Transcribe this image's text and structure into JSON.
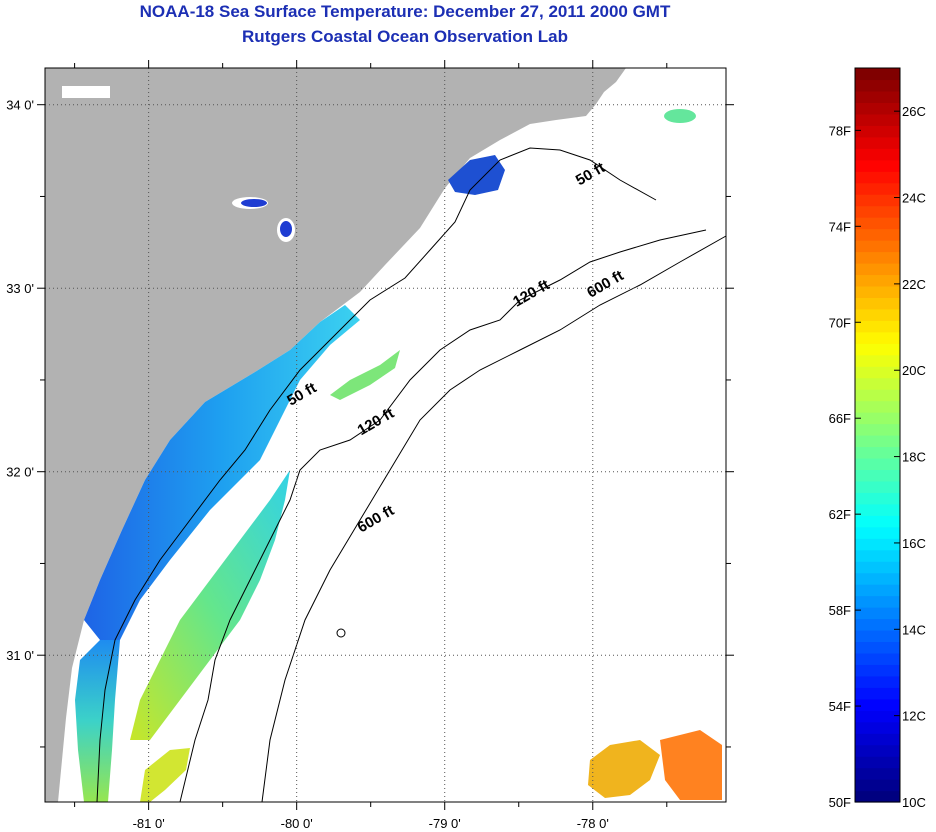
{
  "title": "NOAA-18 Sea Surface Temperature:  December 27, 2011 2000 GMT",
  "subtitle": "Rutgers Coastal Ocean Observation Lab",
  "map": {
    "lon_range": [
      -81.7,
      -77.1
    ],
    "lat_range": [
      30.2,
      34.2
    ],
    "lat_ticks": [
      "34 0'",
      "33 0'",
      "32 0'",
      "31 0'"
    ],
    "lon_ticks": [
      "-81 0'",
      "-80 0'",
      "-79 0'",
      "-78 0'"
    ],
    "land_color": "#b2b2b2",
    "ocean_color": "#ffffff",
    "grid": "dotted",
    "contour_labels": [
      {
        "label": "50 ft",
        "lon": -78.0,
        "lat": 33.6
      },
      {
        "label": "120 ft",
        "lon": -78.4,
        "lat": 32.95
      },
      {
        "label": "600 ft",
        "lon": -77.9,
        "lat": 33.0
      },
      {
        "label": "50 ft",
        "lon": -79.95,
        "lat": 32.4
      },
      {
        "label": "120 ft",
        "lon": -79.45,
        "lat": 32.25
      },
      {
        "label": "600 ft",
        "lon": -79.45,
        "lat": 31.72
      }
    ]
  },
  "colorbar": {
    "min_c": 10,
    "max_c": 27,
    "celsius_labels": [
      "26C",
      "24C",
      "22C",
      "20C",
      "18C",
      "16C",
      "14C",
      "12C",
      "10C"
    ],
    "fahrenheit_labels": [
      "78F",
      "74F",
      "70F",
      "66F",
      "62F",
      "58F",
      "54F",
      "50F"
    ]
  }
}
